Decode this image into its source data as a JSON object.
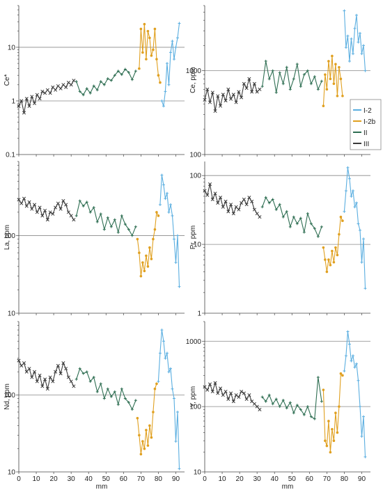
{
  "legend": {
    "entries": [
      {
        "name": "I-2",
        "color": "#5aaee0",
        "marker": "plus"
      },
      {
        "name": "I-2b",
        "color": "#e0a020",
        "marker": "circle"
      },
      {
        "name": "II",
        "color": "#2e6e52",
        "marker": "plus"
      },
      {
        "name": "III",
        "color": "#3a3a3a",
        "marker": "cross"
      }
    ]
  },
  "chart_data": [
    {
      "type": "line",
      "ylabel": "Ce*",
      "xlabel": "",
      "yscale": "log",
      "ylim": [
        0.1,
        60
      ],
      "xlim": [
        0,
        95
      ],
      "yticks": [
        "0.1",
        "1",
        "10"
      ],
      "yticks_values": [
        0.1,
        1,
        10
      ],
      "xticks": [],
      "reference_lines": [
        1,
        10
      ],
      "series": [
        {
          "name": "III",
          "x": [
            0,
            1.5,
            3,
            4.5,
            6,
            7.5,
            9,
            10.5,
            12,
            13.5,
            15,
            16.5,
            18,
            19.5,
            21,
            22.5,
            24,
            25.5,
            27,
            28.5,
            30,
            31.5
          ],
          "y": [
            0.8,
            1.0,
            0.6,
            1.1,
            0.8,
            1.2,
            0.9,
            1.3,
            1.1,
            1.5,
            1.4,
            1.6,
            1.4,
            1.8,
            1.6,
            1.9,
            1.7,
            2.0,
            1.8,
            2.2,
            2.0,
            2.4
          ]
        },
        {
          "name": "II",
          "x": [
            33,
            35,
            37,
            39,
            41,
            43,
            45,
            47,
            49,
            51,
            53,
            55,
            57,
            59,
            61,
            63,
            65,
            67
          ],
          "y": [
            2.3,
            1.5,
            1.3,
            1.7,
            1.4,
            1.9,
            1.6,
            2.3,
            2.0,
            2.6,
            2.4,
            3.0,
            3.6,
            3.1,
            3.9,
            3.4,
            2.5,
            3.6
          ]
        },
        {
          "name": "I-2b",
          "x": [
            69,
            70,
            71,
            72,
            73,
            74,
            75,
            76,
            77,
            78,
            79,
            80,
            81
          ],
          "y": [
            4.0,
            22,
            8,
            27,
            6,
            20,
            15,
            7,
            9,
            22,
            6,
            3,
            2.2
          ]
        },
        {
          "name": "I-2",
          "x": [
            82,
            83,
            84,
            85,
            86,
            87,
            88,
            89,
            90,
            91,
            92
          ],
          "y": [
            1.0,
            0.8,
            1.5,
            5,
            2,
            8,
            13,
            6,
            10,
            15,
            28
          ]
        }
      ]
    },
    {
      "type": "line",
      "ylabel": "Ce, ppm",
      "xlabel": "",
      "yscale": "log",
      "ylim": [
        100,
        6000
      ],
      "xlim": [
        0,
        95
      ],
      "yticks": [
        "100",
        "1000"
      ],
      "yticks_values": [
        100,
        1000
      ],
      "xticks": [],
      "reference_lines": [
        1000
      ],
      "series": [
        {
          "name": "III",
          "x": [
            0,
            1.5,
            3,
            4.5,
            6,
            7.5,
            9,
            10.5,
            12,
            13.5,
            15,
            16.5,
            18,
            19.5,
            21,
            22.5,
            24,
            25.5,
            27,
            28.5,
            30,
            31.5
          ],
          "y": [
            450,
            600,
            420,
            550,
            330,
            500,
            380,
            520,
            440,
            600,
            460,
            520,
            420,
            560,
            480,
            700,
            620,
            800,
            560,
            700,
            560,
            600
          ]
        },
        {
          "name": "II",
          "x": [
            33,
            35,
            37,
            39,
            41,
            43,
            45,
            47,
            49,
            51,
            53,
            55,
            57,
            59,
            61,
            63,
            65,
            67
          ],
          "y": [
            650,
            1300,
            800,
            1000,
            550,
            950,
            700,
            1100,
            600,
            800,
            1200,
            650,
            900,
            1000,
            700,
            850,
            600,
            750
          ]
        },
        {
          "name": "I-2b",
          "x": [
            68,
            69,
            70,
            71,
            72,
            73,
            74,
            75,
            76,
            77,
            78,
            79
          ],
          "y": [
            380,
            900,
            600,
            1300,
            800,
            1500,
            700,
            1200,
            500,
            1100,
            800,
            500
          ]
        },
        {
          "name": "I-2",
          "x": [
            80,
            81,
            82,
            83,
            84,
            85,
            86,
            87,
            88,
            89,
            90,
            91,
            92
          ],
          "y": [
            5200,
            1900,
            2600,
            1300,
            2400,
            1600,
            3200,
            4600,
            2200,
            2800,
            1600,
            2000,
            1000
          ]
        }
      ]
    },
    {
      "type": "line",
      "ylabel": "La, ppm",
      "xlabel": "",
      "yscale": "log",
      "ylim": [
        10,
        900
      ],
      "xlim": [
        0,
        95
      ],
      "yticks": [
        "10",
        "100"
      ],
      "yticks_values": [
        10,
        100
      ],
      "xticks": [],
      "reference_lines": [
        100
      ],
      "series": [
        {
          "name": "III",
          "x": [
            0,
            1.5,
            3,
            4.5,
            6,
            7.5,
            9,
            10.5,
            12,
            13.5,
            15,
            16.5,
            18,
            19.5,
            21,
            22.5,
            24,
            25.5,
            27,
            28.5,
            30,
            31.5
          ],
          "y": [
            290,
            260,
            300,
            240,
            270,
            220,
            250,
            200,
            230,
            180,
            210,
            160,
            200,
            190,
            230,
            260,
            220,
            280,
            250,
            200,
            180,
            160
          ]
        },
        {
          "name": "II",
          "x": [
            33,
            35,
            37,
            39,
            41,
            43,
            45,
            47,
            49,
            51,
            53,
            55,
            57,
            59,
            61,
            63,
            65,
            67
          ],
          "y": [
            180,
            280,
            240,
            270,
            200,
            230,
            150,
            190,
            120,
            170,
            130,
            160,
            110,
            180,
            140,
            120,
            100,
            130
          ]
        },
        {
          "name": "I-2b",
          "x": [
            68,
            69,
            70,
            71,
            72,
            73,
            74,
            75,
            76,
            77,
            78,
            79,
            80
          ],
          "y": [
            90,
            60,
            30,
            45,
            35,
            55,
            40,
            70,
            50,
            90,
            120,
            200,
            180
          ]
        },
        {
          "name": "I-2",
          "x": [
            81,
            82,
            83,
            84,
            85,
            86,
            87,
            88,
            89,
            90,
            91,
            92
          ],
          "y": [
            250,
            600,
            450,
            300,
            350,
            200,
            250,
            180,
            90,
            45,
            100,
            22
          ]
        }
      ]
    },
    {
      "type": "line",
      "ylabel": "Pr, ppm",
      "xlabel": "",
      "yscale": "log",
      "ylim": [
        1,
        160
      ],
      "xlim": [
        0,
        95
      ],
      "yticks": [
        "1",
        "10",
        "100"
      ],
      "yticks_values": [
        1,
        10,
        100
      ],
      "xticks": [],
      "reference_lines": [
        10,
        100
      ],
      "series": [
        {
          "name": "III",
          "x": [
            0,
            1.5,
            3,
            4.5,
            6,
            7.5,
            9,
            10.5,
            12,
            13.5,
            15,
            16.5,
            18,
            19.5,
            21,
            22.5,
            24,
            25.5,
            27,
            28.5,
            30,
            31.5
          ],
          "y": [
            60,
            52,
            75,
            45,
            55,
            40,
            48,
            35,
            42,
            30,
            38,
            28,
            35,
            32,
            40,
            45,
            38,
            48,
            42,
            32,
            28,
            25
          ]
        },
        {
          "name": "II",
          "x": [
            33,
            35,
            37,
            39,
            41,
            43,
            45,
            47,
            49,
            51,
            53,
            55,
            57,
            59,
            61,
            63,
            65,
            67
          ],
          "y": [
            35,
            48,
            40,
            45,
            32,
            38,
            25,
            30,
            18,
            25,
            20,
            24,
            15,
            28,
            20,
            17,
            13,
            18
          ]
        },
        {
          "name": "I-2b",
          "x": [
            68,
            69,
            70,
            71,
            72,
            73,
            74,
            75,
            76,
            77,
            78,
            79
          ],
          "y": [
            9,
            6,
            4,
            6,
            5,
            8,
            5.5,
            9,
            7,
            14,
            25,
            22
          ]
        },
        {
          "name": "I-2",
          "x": [
            80,
            81,
            82,
            83,
            84,
            85,
            86,
            87,
            88,
            89,
            90,
            91,
            92
          ],
          "y": [
            30,
            60,
            130,
            90,
            50,
            60,
            35,
            40,
            20,
            16,
            5.5,
            12,
            2.3
          ]
        }
      ]
    },
    {
      "type": "line",
      "ylabel": "Nd, ppm",
      "xlabel": "mm",
      "yscale": "log",
      "ylim": [
        10,
        900
      ],
      "xlim": [
        0,
        95
      ],
      "yticks": [
        "10",
        "100"
      ],
      "yticks_values": [
        10,
        100
      ],
      "xticks": [
        "0",
        "10",
        "20",
        "30",
        "40",
        "50",
        "60",
        "70",
        "80",
        "90"
      ],
      "xticks_values": [
        0,
        10,
        20,
        30,
        40,
        50,
        60,
        70,
        80,
        90
      ],
      "reference_lines": [
        100
      ],
      "series": [
        {
          "name": "III",
          "x": [
            0,
            1.5,
            3,
            4.5,
            6,
            7.5,
            9,
            10.5,
            12,
            13.5,
            15,
            16.5,
            18,
            19.5,
            21,
            22.5,
            24,
            25.5,
            27,
            28.5,
            30,
            31.5
          ],
          "y": [
            280,
            240,
            260,
            200,
            220,
            170,
            200,
            150,
            180,
            130,
            160,
            120,
            170,
            150,
            200,
            240,
            190,
            260,
            220,
            170,
            150,
            130
          ]
        },
        {
          "name": "II",
          "x": [
            33,
            35,
            37,
            39,
            41,
            43,
            45,
            47,
            49,
            51,
            53,
            55,
            57,
            59,
            61,
            63,
            65,
            67
          ],
          "y": [
            160,
            220,
            190,
            200,
            150,
            170,
            110,
            140,
            90,
            120,
            95,
            110,
            75,
            120,
            90,
            80,
            65,
            85
          ]
        },
        {
          "name": "I-2b",
          "x": [
            68,
            69,
            70,
            71,
            72,
            73,
            74,
            75,
            76,
            77,
            78,
            79
          ],
          "y": [
            50,
            30,
            17,
            25,
            20,
            35,
            22,
            40,
            28,
            60,
            120,
            140
          ]
        },
        {
          "name": "I-2",
          "x": [
            80,
            81,
            82,
            83,
            84,
            85,
            86,
            87,
            88,
            89,
            90,
            91,
            92
          ],
          "y": [
            150,
            350,
            700,
            500,
            300,
            350,
            200,
            220,
            120,
            90,
            25,
            60,
            11
          ]
        }
      ]
    },
    {
      "type": "line",
      "ylabel": "Y, ppm",
      "xlabel": "mm",
      "yscale": "log",
      "ylim": [
        10,
        2000
      ],
      "xlim": [
        0,
        95
      ],
      "yticks": [
        "10",
        "100",
        "1000"
      ],
      "yticks_values": [
        10,
        100,
        1000
      ],
      "xticks": [
        "0",
        "10",
        "20",
        "30",
        "40",
        "50",
        "60",
        "70",
        "80",
        "90"
      ],
      "xticks_values": [
        0,
        10,
        20,
        30,
        40,
        50,
        60,
        70,
        80,
        90
      ],
      "reference_lines": [
        100,
        1000
      ],
      "series": [
        {
          "name": "III",
          "x": [
            0,
            1.5,
            3,
            4.5,
            6,
            7.5,
            9,
            10.5,
            12,
            13.5,
            15,
            16.5,
            18,
            19.5,
            21,
            22.5,
            24,
            25.5,
            27,
            28.5,
            30,
            31.5
          ],
          "y": [
            200,
            180,
            220,
            170,
            230,
            160,
            190,
            150,
            170,
            130,
            160,
            120,
            150,
            140,
            170,
            160,
            130,
            150,
            120,
            110,
            100,
            90
          ]
        },
        {
          "name": "II",
          "x": [
            33,
            35,
            37,
            39,
            41,
            43,
            45,
            47,
            49,
            51,
            53,
            55,
            57,
            59,
            61,
            63,
            65,
            67
          ],
          "y": [
            140,
            120,
            150,
            110,
            130,
            100,
            125,
            95,
            115,
            80,
            105,
            90,
            75,
            100,
            70,
            65,
            280,
            120
          ]
        },
        {
          "name": "I-2b",
          "x": [
            68,
            69,
            70,
            71,
            72,
            73,
            74,
            75,
            76,
            77,
            78,
            79
          ],
          "y": [
            180,
            30,
            25,
            60,
            20,
            45,
            30,
            80,
            40,
            100,
            320,
            300
          ]
        },
        {
          "name": "I-2",
          "x": [
            80,
            81,
            82,
            83,
            84,
            85,
            86,
            87,
            88,
            89,
            90,
            91,
            92
          ],
          "y": [
            350,
            600,
            1400,
            900,
            500,
            600,
            400,
            450,
            250,
            100,
            35,
            70,
            17
          ]
        }
      ]
    }
  ]
}
